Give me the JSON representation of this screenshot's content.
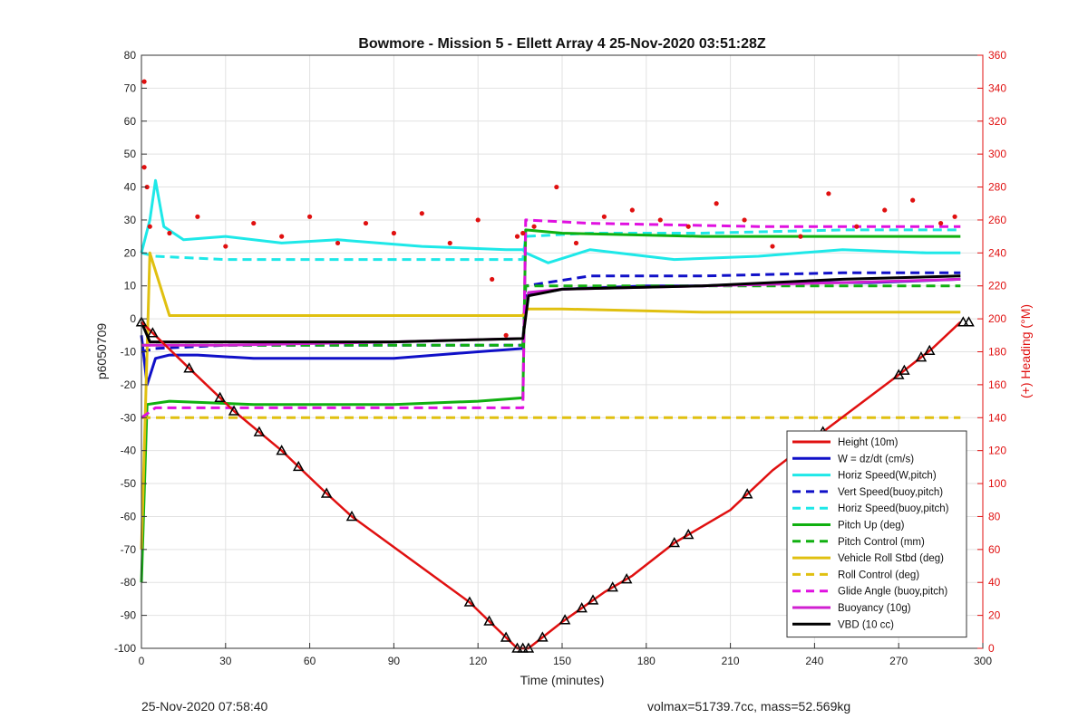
{
  "chart_data": {
    "type": "line",
    "title": "Bowmore - Mission 5 - Ellett Array 4 25-Nov-2020 03:51:28Z",
    "xlabel": "Time (minutes)",
    "ylabel": "p6050709",
    "y2label": "(+) Heading (°M)",
    "xlim": [
      0,
      300
    ],
    "ylim": [
      -100,
      80
    ],
    "y2lim": [
      0,
      360
    ],
    "xticks": [
      "0",
      "30",
      "60",
      "90",
      "120",
      "150",
      "180",
      "210",
      "240",
      "270",
      "300"
    ],
    "yticks": [
      "-100",
      "-90",
      "-80",
      "-70",
      "-60",
      "-50",
      "-40",
      "-30",
      "-20",
      "-10",
      "0",
      "10",
      "20",
      "30",
      "40",
      "50",
      "60",
      "70",
      "80"
    ],
    "y2ticks": [
      "0",
      "20",
      "40",
      "60",
      "80",
      "100",
      "120",
      "140",
      "160",
      "180",
      "200",
      "220",
      "240",
      "260",
      "280",
      "300",
      "320",
      "340",
      "360"
    ],
    "grid": true,
    "legend_position": "bottom-right",
    "colors": {
      "height": "#e01010",
      "w": "#1010c8",
      "horiz_w": "#1ee8e8",
      "pitch_up": "#10b010",
      "roll": "#e0c010",
      "glide": "#e010e0",
      "buoyancy": "#d020d0",
      "vbd": "#000000",
      "heading": "#e01010",
      "axis": "#333333",
      "grid": "#e2e2e2"
    },
    "series": [
      {
        "name": "Height (10m)",
        "color": "#e01010",
        "style": "solid",
        "x": [
          0,
          17,
          33,
          50,
          66,
          75,
          117,
          134,
          138,
          150,
          165,
          175,
          190,
          210,
          225,
          245,
          270,
          282,
          292
        ],
        "y": [
          -1,
          -15,
          -28,
          -40,
          -53,
          -60,
          -86,
          -100,
          -100,
          -92,
          -83,
          -78,
          -68,
          -58,
          -46,
          -33,
          -17,
          -9,
          -1
        ]
      },
      {
        "name": "W = dz/dt (cm/s)",
        "color": "#1010c8",
        "style": "solid",
        "x": [
          0,
          2,
          5,
          10,
          20,
          40,
          60,
          90,
          120,
          136,
          137,
          150,
          180,
          200,
          230,
          260,
          292
        ],
        "y": [
          -5,
          -20,
          -12,
          -11,
          -11,
          -12,
          -12,
          -12,
          -10,
          -9,
          7,
          9,
          10,
          10,
          11,
          11,
          12
        ]
      },
      {
        "name": "Horiz Speed(W,pitch)",
        "color": "#1ee8e8",
        "style": "solid",
        "x": [
          0,
          3,
          5,
          8,
          15,
          30,
          50,
          70,
          100,
          130,
          136,
          137,
          145,
          160,
          190,
          220,
          250,
          280,
          292
        ],
        "y": [
          20,
          30,
          42,
          28,
          24,
          25,
          23,
          24,
          22,
          21,
          21,
          20,
          17,
          21,
          18,
          19,
          21,
          20,
          20
        ]
      },
      {
        "name": "Vert Speed(buoy,pitch)",
        "color": "#1010c8",
        "style": "dash",
        "x": [
          0,
          5,
          30,
          90,
          136,
          137,
          160,
          200,
          250,
          292
        ],
        "y": [
          -10,
          -9,
          -8,
          -8,
          -8,
          10,
          13,
          13,
          14,
          14
        ]
      },
      {
        "name": "Horiz Speed(buoy,pitch)",
        "color": "#1ee8e8",
        "style": "dash",
        "x": [
          0,
          5,
          30,
          90,
          136,
          137,
          160,
          200,
          250,
          292
        ],
        "y": [
          20,
          19,
          18,
          18,
          18,
          25,
          26,
          26,
          27,
          27
        ]
      },
      {
        "name": "Pitch Up (deg)",
        "color": "#10b010",
        "style": "solid",
        "x": [
          0,
          2,
          10,
          40,
          90,
          120,
          136,
          137,
          150,
          200,
          250,
          292
        ],
        "y": [
          -80,
          -26,
          -25,
          -26,
          -26,
          -25,
          -24,
          27,
          26,
          25,
          25,
          25
        ]
      },
      {
        "name": "Pitch Control (mm)",
        "color": "#10b010",
        "style": "dash",
        "x": [
          0,
          5,
          50,
          100,
          136,
          137,
          200,
          292
        ],
        "y": [
          -8,
          -8,
          -8,
          -8,
          -8,
          10,
          10,
          10
        ]
      },
      {
        "name": "Vehicle Roll Stbd (deg)",
        "color": "#e0c010",
        "style": "solid",
        "x": [
          0,
          3,
          10,
          60,
          120,
          136,
          137,
          150,
          200,
          250,
          292
        ],
        "y": [
          -70,
          20,
          1,
          1,
          1,
          1,
          3,
          3,
          2,
          2,
          2
        ]
      },
      {
        "name": "Roll Control (deg)",
        "color": "#e0c010",
        "style": "dash",
        "x": [
          0,
          5,
          50,
          100,
          136,
          137,
          200,
          292
        ],
        "y": [
          -30,
          -30,
          -30,
          -30,
          -30,
          -30,
          -30,
          -30
        ]
      },
      {
        "name": "Glide Angle (buoy,pitch)",
        "color": "#e010e0",
        "style": "dash",
        "x": [
          0,
          5,
          40,
          100,
          136,
          137,
          160,
          220,
          292
        ],
        "y": [
          -30,
          -27,
          -27,
          -27,
          -27,
          30,
          29,
          28,
          28
        ]
      },
      {
        "name": "Buoyancy (10g)",
        "color": "#d020d0",
        "style": "solid",
        "x": [
          0,
          3,
          30,
          90,
          136,
          138,
          150,
          200,
          250,
          292
        ],
        "y": [
          -8,
          -8,
          -8,
          -7,
          -6,
          8,
          9,
          10,
          11,
          12
        ]
      },
      {
        "name": "VBD (10 cc)",
        "color": "#000000",
        "style": "solid",
        "x": [
          0,
          3,
          30,
          90,
          136,
          138,
          150,
          200,
          250,
          292
        ],
        "y": [
          -1,
          -7,
          -7,
          -7,
          -6,
          7,
          9,
          10,
          12,
          13
        ]
      }
    ],
    "heading_points": {
      "axis": "right",
      "color": "#e01010",
      "x": [
        1,
        1,
        2,
        3,
        10,
        20,
        30,
        40,
        50,
        60,
        70,
        80,
        90,
        100,
        110,
        120,
        125,
        130,
        134,
        136,
        140,
        148,
        155,
        165,
        175,
        185,
        195,
        205,
        215,
        225,
        235,
        245,
        255,
        265,
        275,
        285,
        290
      ],
      "y": [
        344,
        292,
        280,
        256,
        252,
        262,
        244,
        258,
        250,
        262,
        246,
        258,
        252,
        264,
        246,
        260,
        224,
        190,
        250,
        252,
        256,
        280,
        246,
        262,
        266,
        260,
        256,
        270,
        260,
        244,
        250,
        276,
        256,
        266,
        272,
        258,
        262
      ]
    },
    "height_markers": {
      "x": [
        0,
        4,
        17,
        28,
        33,
        42,
        50,
        56,
        66,
        75,
        117,
        124,
        130,
        134,
        136,
        138,
        143,
        151,
        157,
        161,
        168,
        173,
        190,
        195,
        216,
        238,
        243,
        270,
        272,
        278,
        281,
        293,
        295
      ]
    }
  },
  "legend": {
    "items": [
      {
        "label": "Height (10m)",
        "color": "#e01010",
        "style": "solid"
      },
      {
        "label": "W = dz/dt (cm/s)",
        "color": "#1010c8",
        "style": "solid"
      },
      {
        "label": "Horiz Speed(W,pitch)",
        "color": "#1ee8e8",
        "style": "solid"
      },
      {
        "label": "Vert Speed(buoy,pitch)",
        "color": "#1010c8",
        "style": "dash"
      },
      {
        "label": "Horiz Speed(buoy,pitch)",
        "color": "#1ee8e8",
        "style": "dash"
      },
      {
        "label": "Pitch Up (deg)",
        "color": "#10b010",
        "style": "solid"
      },
      {
        "label": "Pitch Control (mm)",
        "color": "#10b010",
        "style": "dash"
      },
      {
        "label": "Vehicle Roll Stbd (deg)",
        "color": "#e0c010",
        "style": "solid"
      },
      {
        "label": "Roll Control (deg)",
        "color": "#e0c010",
        "style": "dash"
      },
      {
        "label": "Glide Angle (buoy,pitch)",
        "color": "#e010e0",
        "style": "dash"
      },
      {
        "label": "Buoyancy (10g)",
        "color": "#d020d0",
        "style": "solid"
      },
      {
        "label": "VBD (10 cc)",
        "color": "#000000",
        "style": "solid"
      }
    ]
  },
  "footer": {
    "left": "25-Nov-2020 07:58:40",
    "right": "volmax=51739.7cc, mass=52.569kg"
  }
}
